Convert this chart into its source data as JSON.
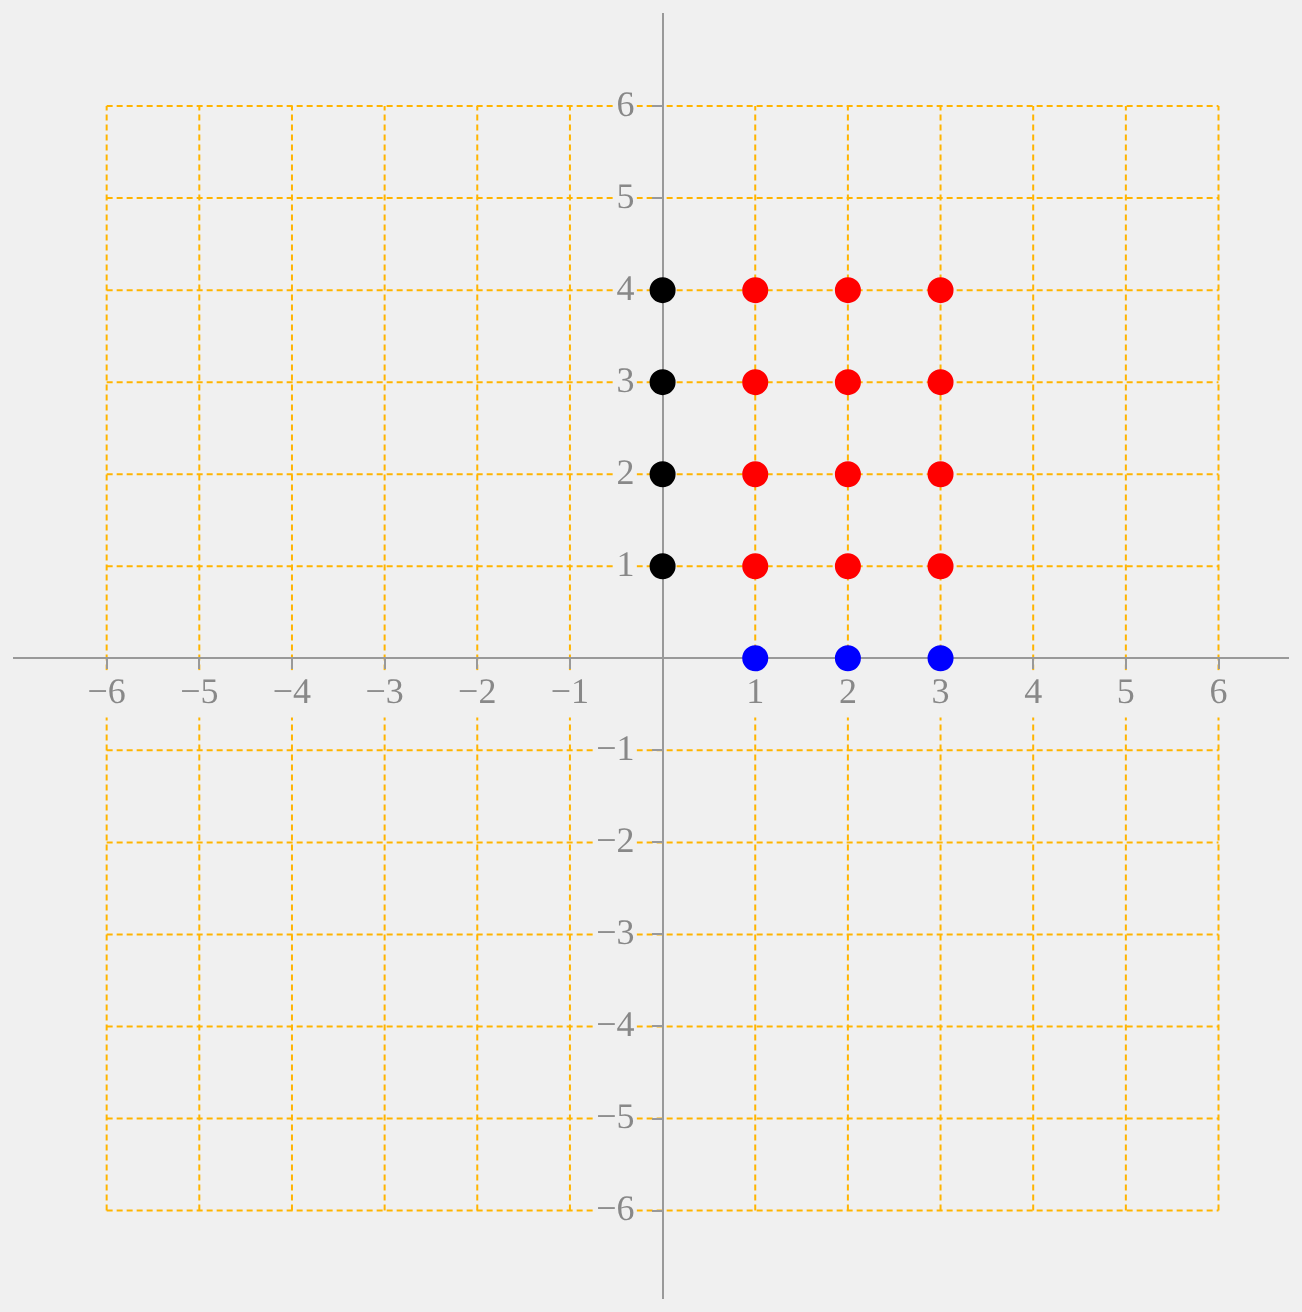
{
  "chart_data": {
    "type": "scatter",
    "xlim": [
      -7,
      6.75
    ],
    "ylim": [
      -6.95,
      7
    ],
    "xticks": [
      -6,
      -5,
      -4,
      -3,
      -2,
      -1,
      1,
      2,
      3,
      4,
      5,
      6
    ],
    "yticks": [
      -6,
      -5,
      -4,
      -3,
      -2,
      -1,
      1,
      2,
      3,
      4,
      5,
      6
    ],
    "grid": true,
    "marker": "circle",
    "series": [
      {
        "color": "#000000",
        "x": [
          0,
          0,
          0,
          0
        ],
        "values": [
          1,
          2,
          3,
          4
        ]
      },
      {
        "color": "#ff0000",
        "x": [
          1,
          2,
          3,
          1,
          2,
          3,
          1,
          2,
          3,
          1,
          2,
          3
        ],
        "values": [
          1,
          1,
          1,
          2,
          2,
          2,
          3,
          3,
          3,
          4,
          4,
          4
        ]
      },
      {
        "color": "#0000ff",
        "x": [
          1,
          2,
          3
        ],
        "values": [
          0,
          0,
          0
        ]
      }
    ]
  }
}
